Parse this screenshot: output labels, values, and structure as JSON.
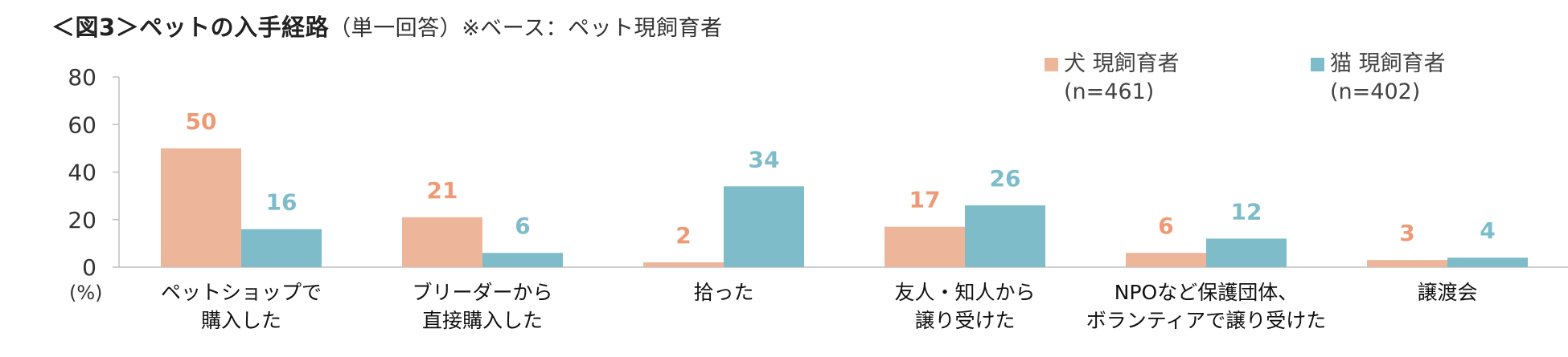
{
  "header": {
    "title_main": "＜図3＞ペットの入手経路",
    "title_note": "（単一回答）",
    "title_base": "※ベース：ペット現飼育者"
  },
  "chart_data": {
    "type": "bar",
    "unit_label": "(%)",
    "categories": [
      [
        "ペットショップで",
        "購入した"
      ],
      [
        "ブリーダーから",
        "直接購入した"
      ],
      [
        "拾った"
      ],
      [
        "友人・知人から",
        "譲り受けた"
      ],
      [
        "NPOなど保護団体、",
        "ボランティアで譲り受けた"
      ],
      [
        "譲渡会"
      ]
    ],
    "series": [
      {
        "name": "犬 現飼育者",
        "sample": "(n=461)",
        "color": "#EDB59A",
        "label_color": "#EE9A76",
        "values": [
          50,
          21,
          2,
          17,
          6,
          3
        ]
      },
      {
        "name": "猫 現飼育者",
        "sample": "(n=402)",
        "color": "#7EBCCA",
        "label_color": "#7EBCCA",
        "values": [
          16,
          6,
          34,
          26,
          12,
          4
        ]
      }
    ],
    "ylim": [
      0,
      80
    ],
    "yticks": [
      0,
      20,
      40,
      60,
      80
    ],
    "grid": false,
    "legend_position": "top-right"
  }
}
